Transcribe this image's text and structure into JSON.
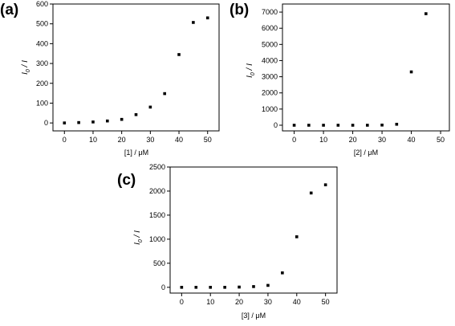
{
  "chart_data": [
    {
      "type": "scatter",
      "panel_label": "(a)",
      "xlabel": "[1] / μM",
      "ylabel": "I0 / I",
      "xlim": [
        -4,
        54
      ],
      "ylim": [
        -40,
        600
      ],
      "xticks": [
        0,
        10,
        20,
        30,
        40,
        50
      ],
      "yticks": [
        0,
        100,
        200,
        300,
        400,
        500,
        600
      ],
      "x": [
        0,
        5,
        10,
        15,
        20,
        25,
        30,
        35,
        40,
        45,
        50
      ],
      "y": [
        0,
        2,
        5,
        10,
        18,
        42,
        80,
        148,
        345,
        507,
        530
      ],
      "marker": "square",
      "color": "#000000"
    },
    {
      "type": "scatter",
      "panel_label": "(b)",
      "xlabel": "[2] / μM",
      "ylabel": "I0 / I",
      "xlim": [
        -4,
        53
      ],
      "ylim": [
        -350,
        7500
      ],
      "xticks": [
        0,
        10,
        20,
        30,
        40,
        50
      ],
      "yticks": [
        0,
        1000,
        2000,
        3000,
        4000,
        5000,
        6000,
        7000
      ],
      "x": [
        0,
        5,
        10,
        15,
        20,
        25,
        30,
        35,
        40,
        45
      ],
      "y": [
        0,
        0,
        0,
        0,
        0,
        0,
        10,
        60,
        3300,
        6900
      ],
      "marker": "square",
      "color": "#000000"
    },
    {
      "type": "scatter",
      "panel_label": "(c)",
      "xlabel": "[3] / μM",
      "ylabel": "I0 / I",
      "xlim": [
        -4,
        54
      ],
      "ylim": [
        -120,
        2500
      ],
      "xticks": [
        0,
        10,
        20,
        30,
        40,
        50
      ],
      "yticks": [
        0,
        500,
        1000,
        1500,
        2000,
        2500
      ],
      "x": [
        0,
        5,
        10,
        15,
        20,
        25,
        30,
        35,
        40,
        45,
        50
      ],
      "y": [
        0,
        0,
        0,
        0,
        5,
        15,
        40,
        300,
        1050,
        1960,
        2130
      ],
      "marker": "square",
      "color": "#000000"
    }
  ]
}
